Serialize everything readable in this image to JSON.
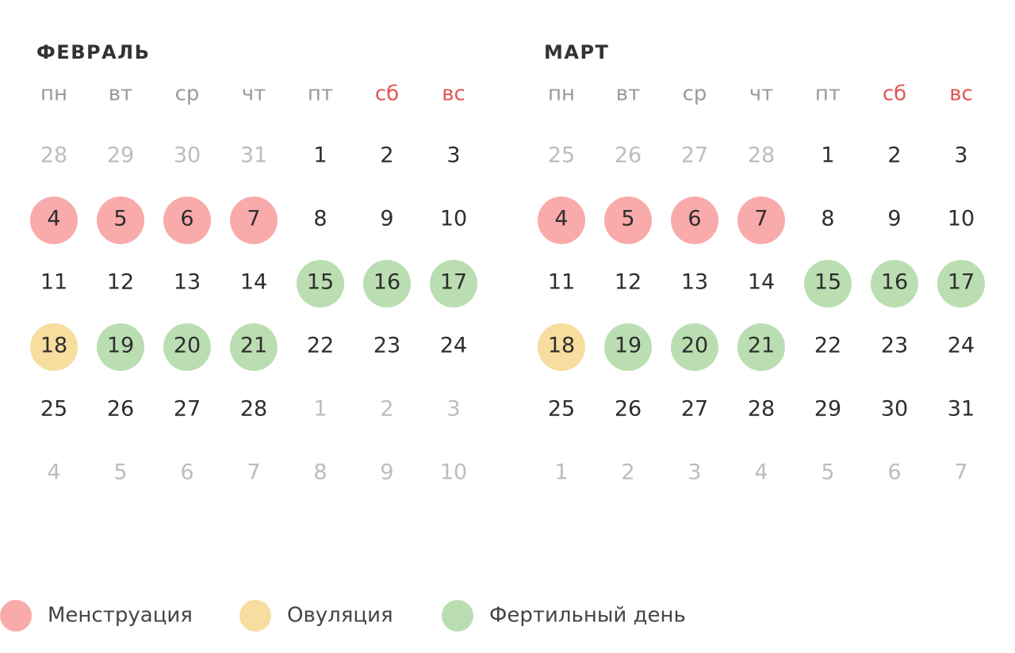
{
  "months": [
    {
      "title": "ФЕВРАЛЬ",
      "weekdays": [
        {
          "text": "пн",
          "color": "#9a9a9a"
        },
        {
          "text": "вт",
          "color": "#9a9a9a"
        },
        {
          "text": "ср",
          "color": "#9a9a9a"
        },
        {
          "text": "чт",
          "color": "#9a9a9a"
        },
        {
          "text": "пт",
          "color": "#9a9a9a"
        },
        {
          "text": "сб",
          "color": "#e25555"
        },
        {
          "text": "вс",
          "color": "#e25555"
        }
      ],
      "weeks": [
        [
          {
            "day": 28,
            "muted": true
          },
          {
            "day": 29,
            "muted": true
          },
          {
            "day": 30,
            "muted": true
          },
          {
            "day": 31,
            "muted": true
          },
          {
            "day": 1
          },
          {
            "day": 2
          },
          {
            "day": 3
          }
        ],
        [
          {
            "day": 4,
            "bg": "#f9aaaa"
          },
          {
            "day": 5,
            "bg": "#f9aaaa"
          },
          {
            "day": 6,
            "bg": "#f9aaaa"
          },
          {
            "day": 7,
            "bg": "#f9aaaa"
          },
          {
            "day": 8
          },
          {
            "day": 9
          },
          {
            "day": 10
          }
        ],
        [
          {
            "day": 11
          },
          {
            "day": 12
          },
          {
            "day": 13
          },
          {
            "day": 14
          },
          {
            "day": 15,
            "bg": "#badeb1"
          },
          {
            "day": 16,
            "bg": "#badeb1"
          },
          {
            "day": 17,
            "bg": "#badeb1"
          }
        ],
        [
          {
            "day": 18,
            "bg": "#f7dd9e"
          },
          {
            "day": 19,
            "bg": "#badeb1"
          },
          {
            "day": 20,
            "bg": "#badeb1"
          },
          {
            "day": 21,
            "bg": "#badeb1"
          },
          {
            "day": 22
          },
          {
            "day": 23
          },
          {
            "day": 24
          }
        ],
        [
          {
            "day": 25
          },
          {
            "day": 26
          },
          {
            "day": 27
          },
          {
            "day": 28
          },
          {
            "day": 1,
            "muted": true
          },
          {
            "day": 2,
            "muted": true
          },
          {
            "day": 3,
            "muted": true
          }
        ],
        [
          {
            "day": 4,
            "muted": true
          },
          {
            "day": 5,
            "muted": true
          },
          {
            "day": 6,
            "muted": true
          },
          {
            "day": 7,
            "muted": true
          },
          {
            "day": 8,
            "muted": true
          },
          {
            "day": 9,
            "muted": true
          },
          {
            "day": 10,
            "muted": true
          }
        ]
      ]
    },
    {
      "title": "МАРТ",
      "weekdays": [
        {
          "text": "пн",
          "color": "#9a9a9a"
        },
        {
          "text": "вт",
          "color": "#9a9a9a"
        },
        {
          "text": "ср",
          "color": "#9a9a9a"
        },
        {
          "text": "чт",
          "color": "#9a9a9a"
        },
        {
          "text": "пт",
          "color": "#9a9a9a"
        },
        {
          "text": "сб",
          "color": "#e25555"
        },
        {
          "text": "вс",
          "color": "#e25555"
        }
      ],
      "weeks": [
        [
          {
            "day": 25,
            "muted": true
          },
          {
            "day": 26,
            "muted": true
          },
          {
            "day": 27,
            "muted": true
          },
          {
            "day": 28,
            "muted": true
          },
          {
            "day": 1
          },
          {
            "day": 2
          },
          {
            "day": 3
          }
        ],
        [
          {
            "day": 4,
            "bg": "#f9aaaa"
          },
          {
            "day": 5,
            "bg": "#f9aaaa"
          },
          {
            "day": 6,
            "bg": "#f9aaaa"
          },
          {
            "day": 7,
            "bg": "#f9aaaa"
          },
          {
            "day": 8
          },
          {
            "day": 9
          },
          {
            "day": 10
          }
        ],
        [
          {
            "day": 11
          },
          {
            "day": 12
          },
          {
            "day": 13
          },
          {
            "day": 14
          },
          {
            "day": 15,
            "bg": "#badeb1"
          },
          {
            "day": 16,
            "bg": "#badeb1"
          },
          {
            "day": 17,
            "bg": "#badeb1"
          }
        ],
        [
          {
            "day": 18,
            "bg": "#f7dd9e"
          },
          {
            "day": 19,
            "bg": "#badeb1"
          },
          {
            "day": 20,
            "bg": "#badeb1"
          },
          {
            "day": 21,
            "bg": "#badeb1"
          },
          {
            "day": 22
          },
          {
            "day": 23
          },
          {
            "day": 24
          }
        ],
        [
          {
            "day": 25
          },
          {
            "day": 26
          },
          {
            "day": 27
          },
          {
            "day": 28
          },
          {
            "day": 29
          },
          {
            "day": 30
          },
          {
            "day": 31
          }
        ],
        [
          {
            "day": 1,
            "muted": true
          },
          {
            "day": 2,
            "muted": true
          },
          {
            "day": 3,
            "muted": true
          },
          {
            "day": 4,
            "muted": true
          },
          {
            "day": 5,
            "muted": true
          },
          {
            "day": 6,
            "muted": true
          },
          {
            "day": 7,
            "muted": true
          }
        ]
      ]
    }
  ],
  "legend": [
    {
      "label": "Менструация",
      "color": "#f9aaaa"
    },
    {
      "label": "Овуляция",
      "color": "#f7dd9e"
    },
    {
      "label": "Фертильный день",
      "color": "#badeb1"
    }
  ]
}
